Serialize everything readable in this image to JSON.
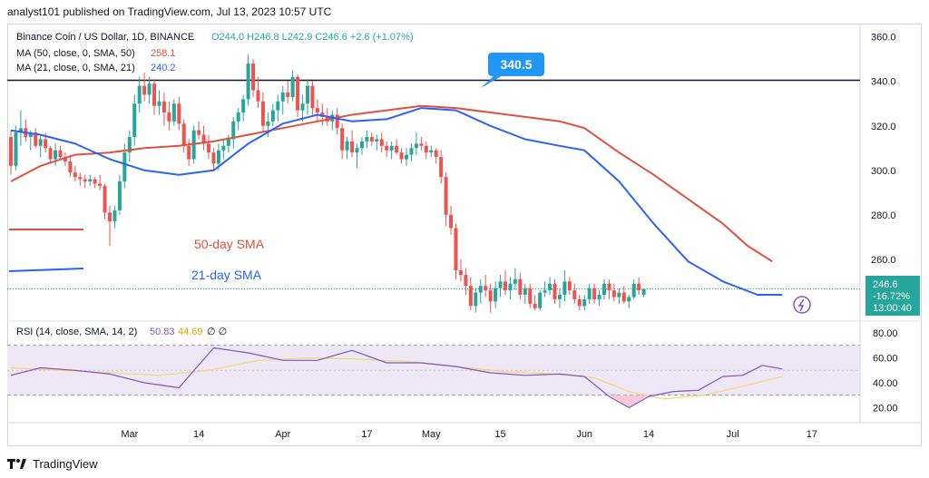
{
  "header": {
    "text": "analyst101 published on TradingView.com, Jul 13, 2023 10:57 UTC"
  },
  "footer": {
    "brand": "TradingView"
  },
  "colors": {
    "up": "#26a69a",
    "down": "#ef5350",
    "sma50": "#e0513d",
    "sma21": "#2962ff",
    "level": "#131722",
    "rsi": "#7e57c2",
    "rsi_sma": "#f5d76e",
    "rsi_band": "#ede7f6",
    "label_bg": "#2196f3",
    "price_tag": "#26a69a"
  },
  "legend": {
    "symbol": "Binance Coin / US Dollar, 1D, BINANCE",
    "ohlc": "O244.0  H246.8  L242.9  C246.6  +2.6 (+1.07%)",
    "ma50_label": "MA (50, close, 0, SMA, 50)",
    "ma50_value": "258.1",
    "ma21_label": "MA (21, close, 0, SMA, 21)",
    "ma21_value": "240.2",
    "rsi_label": "RSI (14, close, SMA, 14, 2)",
    "rsi_value": "50.83",
    "rsi_sma_value": "44.69",
    "rsi_extra": "∅  ∅"
  },
  "annotations": {
    "level_callout": "340.5",
    "sma50_text": "50-day SMA",
    "sma21_text": "21-day SMA"
  },
  "price_tag": {
    "price": "246.6",
    "change": "-16.72%",
    "countdown": "13:00:40"
  },
  "chart_data": {
    "type": "candlestick",
    "price_axis": {
      "ticks": [
        360.0,
        340.0,
        320.0,
        300.0,
        280.0,
        260.0
      ],
      "ylim": [
        233,
        366
      ]
    },
    "rsi_axis": {
      "ticks": [
        80.0,
        60.0,
        40.0,
        20.0
      ],
      "ylim": [
        8,
        88
      ],
      "bands": [
        30,
        70
      ]
    },
    "x_ticks": [
      {
        "label": "Mar",
        "day": 24
      },
      {
        "label": "14",
        "day": 38
      },
      {
        "label": "Apr",
        "day": 55
      },
      {
        "label": "17",
        "day": 72
      },
      {
        "label": "May",
        "day": 85
      },
      {
        "label": "15",
        "day": 99
      },
      {
        "label": "Jun",
        "day": 116
      },
      {
        "label": "14",
        "day": 129
      },
      {
        "label": "Jul",
        "day": 146
      },
      {
        "label": "17",
        "day": 162
      }
    ],
    "horizontal_level": 340.5,
    "candles": [
      [
        315,
        318,
        298,
        302
      ],
      [
        302,
        320,
        300,
        317
      ],
      [
        317,
        327,
        311,
        319
      ],
      [
        319,
        323,
        313,
        315
      ],
      [
        315,
        318,
        309,
        317
      ],
      [
        317,
        319,
        310,
        311
      ],
      [
        311,
        316,
        306,
        314
      ],
      [
        314,
        317,
        308,
        310
      ],
      [
        310,
        311,
        303,
        305
      ],
      [
        305,
        312,
        302,
        309
      ],
      [
        309,
        311,
        305,
        306
      ],
      [
        306,
        308,
        302,
        304
      ],
      [
        304,
        307,
        297,
        299
      ],
      [
        299,
        302,
        295,
        297
      ],
      [
        297,
        299,
        293,
        296
      ],
      [
        296,
        298,
        292,
        295
      ],
      [
        295,
        298,
        293,
        296
      ],
      [
        296,
        297,
        292,
        294
      ],
      [
        294,
        298,
        291,
        293
      ],
      [
        293,
        294,
        278,
        281
      ],
      [
        281,
        284,
        266,
        277
      ],
      [
        277,
        284,
        274,
        282
      ],
      [
        282,
        298,
        280,
        295
      ],
      [
        295,
        312,
        292,
        308
      ],
      [
        308,
        318,
        304,
        315
      ],
      [
        315,
        334,
        311,
        330
      ],
      [
        330,
        342,
        326,
        338
      ],
      [
        338,
        344,
        331,
        334
      ],
      [
        334,
        342,
        330,
        339
      ],
      [
        339,
        341,
        325,
        329
      ],
      [
        329,
        336,
        325,
        331
      ],
      [
        331,
        335,
        320,
        326
      ],
      [
        326,
        331,
        318,
        322
      ],
      [
        322,
        332,
        320,
        330
      ],
      [
        330,
        333,
        318,
        321
      ],
      [
        321,
        323,
        308,
        311
      ],
      [
        311,
        314,
        302,
        305
      ],
      [
        305,
        320,
        303,
        318
      ],
      [
        318,
        322,
        314,
        316
      ],
      [
        316,
        320,
        309,
        312
      ],
      [
        312,
        316,
        305,
        308
      ],
      [
        308,
        310,
        300,
        303
      ],
      [
        303,
        312,
        300,
        309
      ],
      [
        309,
        314,
        305,
        311
      ],
      [
        311,
        316,
        308,
        314
      ],
      [
        314,
        324,
        310,
        322
      ],
      [
        322,
        328,
        318,
        326
      ],
      [
        326,
        334,
        322,
        332
      ],
      [
        332,
        352,
        329,
        348
      ],
      [
        348,
        350,
        333,
        336
      ],
      [
        336,
        342,
        328,
        331
      ],
      [
        331,
        335,
        317,
        320
      ],
      [
        320,
        326,
        315,
        322
      ],
      [
        322,
        330,
        320,
        327
      ],
      [
        327,
        334,
        322,
        331
      ],
      [
        331,
        338,
        325,
        335
      ],
      [
        335,
        340,
        330,
        333
      ],
      [
        333,
        345,
        331,
        342
      ],
      [
        342,
        343,
        324,
        327
      ],
      [
        327,
        334,
        322,
        330
      ],
      [
        330,
        341,
        325,
        338
      ],
      [
        338,
        340,
        325,
        328
      ],
      [
        328,
        332,
        322,
        326
      ],
      [
        326,
        330,
        320,
        324
      ],
      [
        324,
        328,
        320,
        322
      ],
      [
        322,
        327,
        318,
        325
      ],
      [
        325,
        328,
        316,
        319
      ],
      [
        319,
        321,
        305,
        309
      ],
      [
        309,
        315,
        305,
        313
      ],
      [
        313,
        318,
        306,
        308
      ],
      [
        308,
        312,
        301,
        310
      ],
      [
        310,
        315,
        307,
        313
      ],
      [
        313,
        318,
        310,
        315
      ],
      [
        315,
        317,
        311,
        313
      ],
      [
        313,
        316,
        309,
        314
      ],
      [
        314,
        317,
        308,
        311
      ],
      [
        311,
        313,
        306,
        309
      ],
      [
        309,
        313,
        305,
        311
      ],
      [
        311,
        314,
        307,
        308
      ],
      [
        308,
        310,
        303,
        305
      ],
      [
        305,
        310,
        302,
        307
      ],
      [
        307,
        312,
        304,
        310
      ],
      [
        310,
        317,
        307,
        312
      ],
      [
        312,
        315,
        309,
        311
      ],
      [
        311,
        313,
        305,
        308
      ],
      [
        308,
        311,
        306,
        309
      ],
      [
        309,
        310,
        303,
        306
      ],
      [
        306,
        309,
        294,
        297
      ],
      [
        297,
        299,
        275,
        280
      ],
      [
        280,
        284,
        271,
        274
      ],
      [
        274,
        276,
        251,
        255
      ],
      [
        255,
        260,
        250,
        253
      ],
      [
        253,
        256,
        244,
        248
      ],
      [
        248,
        252,
        237,
        239
      ],
      [
        239,
        247,
        236,
        245
      ],
      [
        245,
        251,
        240,
        248
      ],
      [
        248,
        253,
        243,
        246
      ],
      [
        246,
        249,
        236,
        241
      ],
      [
        241,
        250,
        238,
        247
      ],
      [
        247,
        253,
        243,
        250
      ],
      [
        250,
        255,
        244,
        246
      ],
      [
        246,
        252,
        242,
        249
      ],
      [
        249,
        256,
        246,
        251
      ],
      [
        251,
        254,
        242,
        244
      ],
      [
        244,
        249,
        240,
        247
      ],
      [
        247,
        249,
        238,
        240
      ],
      [
        240,
        244,
        237,
        238
      ],
      [
        238,
        246,
        237,
        245
      ],
      [
        245,
        250,
        243,
        246
      ],
      [
        246,
        252,
        244,
        249
      ],
      [
        249,
        251,
        240,
        242
      ],
      [
        242,
        247,
        238,
        244
      ],
      [
        244,
        255,
        241,
        250
      ],
      [
        250,
        252,
        244,
        246
      ],
      [
        246,
        249,
        240,
        242
      ],
      [
        242,
        244,
        237,
        239
      ],
      [
        239,
        244,
        237,
        242
      ],
      [
        242,
        249,
        240,
        247
      ],
      [
        247,
        249,
        240,
        242
      ],
      [
        242,
        246,
        239,
        244
      ],
      [
        244,
        251,
        242,
        249
      ],
      [
        249,
        251,
        242,
        246
      ],
      [
        246,
        249,
        241,
        243
      ],
      [
        243,
        247,
        240,
        245
      ],
      [
        245,
        248,
        240,
        241
      ],
      [
        241,
        244,
        238,
        243
      ],
      [
        243,
        251,
        242,
        249
      ],
      [
        249,
        252,
        244,
        246
      ],
      [
        244.0,
        246.8,
        242.9,
        246.6
      ]
    ],
    "sma50": [
      [
        0,
        295
      ],
      [
        6,
        302
      ],
      [
        13,
        307
      ],
      [
        20,
        308
      ],
      [
        27,
        310
      ],
      [
        34,
        311
      ],
      [
        41,
        313
      ],
      [
        48,
        316
      ],
      [
        55,
        319
      ],
      [
        62,
        322
      ],
      [
        69,
        325
      ],
      [
        76,
        327
      ],
      [
        83,
        329
      ],
      [
        90,
        328
      ],
      [
        97,
        326
      ],
      [
        104,
        324
      ],
      [
        111,
        322
      ],
      [
        116,
        319
      ],
      [
        123,
        308
      ],
      [
        130,
        298
      ],
      [
        137,
        287
      ],
      [
        144,
        276
      ],
      [
        149,
        266
      ],
      [
        154,
        259
      ]
    ],
    "sma21": [
      [
        0,
        318
      ],
      [
        6,
        316
      ],
      [
        13,
        312
      ],
      [
        20,
        305
      ],
      [
        27,
        300
      ],
      [
        34,
        298
      ],
      [
        41,
        300
      ],
      [
        48,
        312
      ],
      [
        55,
        321
      ],
      [
        62,
        325
      ],
      [
        69,
        322
      ],
      [
        76,
        323
      ],
      [
        83,
        328
      ],
      [
        90,
        327
      ],
      [
        97,
        320
      ],
      [
        104,
        314
      ],
      [
        111,
        311
      ],
      [
        116,
        309
      ],
      [
        123,
        295
      ],
      [
        130,
        276
      ],
      [
        137,
        259
      ],
      [
        144,
        250
      ],
      [
        151,
        244
      ],
      [
        156,
        244
      ]
    ],
    "rsi": [
      [
        0,
        46
      ],
      [
        6,
        52
      ],
      [
        13,
        50
      ],
      [
        20,
        47
      ],
      [
        27,
        40
      ],
      [
        34,
        36
      ],
      [
        41,
        68
      ],
      [
        48,
        64
      ],
      [
        55,
        58
      ],
      [
        62,
        58
      ],
      [
        69,
        66
      ],
      [
        76,
        56
      ],
      [
        83,
        56
      ],
      [
        90,
        53
      ],
      [
        97,
        48
      ],
      [
        104,
        46
      ],
      [
        111,
        47
      ],
      [
        116,
        45
      ],
      [
        121,
        29
      ],
      [
        125,
        20
      ],
      [
        129,
        29
      ],
      [
        134,
        33
      ],
      [
        139,
        34
      ],
      [
        144,
        45
      ],
      [
        148,
        46
      ],
      [
        152,
        54
      ],
      [
        156,
        51
      ]
    ],
    "rsi_sma": [
      [
        0,
        52
      ],
      [
        10,
        50
      ],
      [
        20,
        48
      ],
      [
        30,
        46
      ],
      [
        40,
        50
      ],
      [
        50,
        58
      ],
      [
        60,
        60
      ],
      [
        70,
        59
      ],
      [
        80,
        57
      ],
      [
        90,
        53
      ],
      [
        100,
        49
      ],
      [
        110,
        47
      ],
      [
        118,
        44
      ],
      [
        125,
        33
      ],
      [
        132,
        27
      ],
      [
        140,
        30
      ],
      [
        148,
        37
      ],
      [
        153,
        42
      ],
      [
        156,
        45
      ]
    ]
  }
}
